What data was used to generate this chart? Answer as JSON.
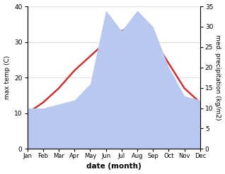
{
  "months": [
    "Jan",
    "Feb",
    "Mar",
    "Apr",
    "May",
    "Jun",
    "Jul",
    "Aug",
    "Sep",
    "Oct",
    "Nov",
    "Dec"
  ],
  "max_temp": [
    10,
    13,
    17,
    22,
    26,
    30,
    33,
    36,
    31,
    24,
    17,
    13
  ],
  "precipitation": [
    10,
    10,
    11,
    12,
    16,
    34,
    29,
    34,
    30,
    20,
    13,
    12
  ],
  "temp_color": "#cc3333",
  "precip_color": "#b8c8ee",
  "title": "",
  "xlabel": "date (month)",
  "ylabel_left": "max temp (C)",
  "ylabel_right": "med. precipitation (kg/m2)",
  "ylim_left": [
    0,
    40
  ],
  "ylim_right": [
    0,
    35
  ],
  "yticks_left": [
    0,
    10,
    20,
    30,
    40
  ],
  "yticks_right": [
    0,
    5,
    10,
    15,
    20,
    25,
    30,
    35
  ],
  "background_color": "#ffffff",
  "grid_color": "#d0d0d0"
}
